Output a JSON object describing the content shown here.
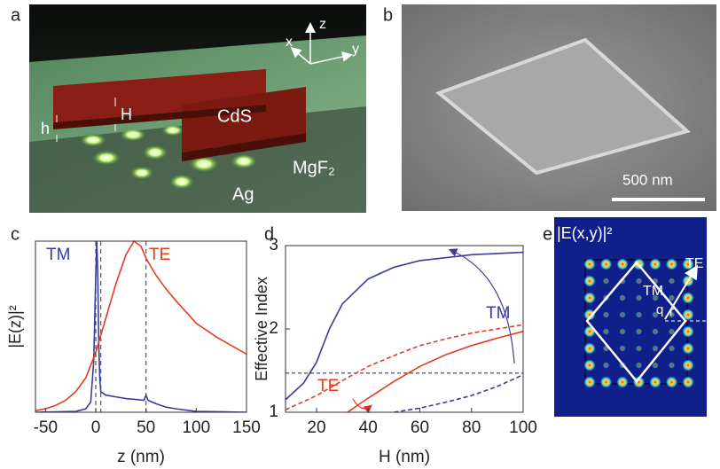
{
  "figure": {
    "panel_labels": [
      "a",
      "b",
      "c",
      "d",
      "e"
    ],
    "panel_a": {
      "axes": [
        "x",
        "y",
        "z"
      ],
      "labels": [
        "H",
        "h",
        "CdS",
        "MgF₂",
        "Ag"
      ]
    },
    "panel_b": {
      "scale_bar": "500 nm"
    },
    "panel_e": {
      "title": "|E(x,y)|²",
      "labels": [
        "TE",
        "TM",
        "q",
        "r"
      ]
    }
  },
  "chart_data": [
    {
      "type": "line",
      "x_label": "z (nm)",
      "y_label": "|E(z)|²",
      "xlim": [
        -60,
        150
      ],
      "xticks": [
        -50,
        0,
        50,
        100,
        150
      ],
      "ylim": [
        0,
        1
      ],
      "vlines": [
        0,
        5,
        50
      ],
      "series": [
        {
          "name": "TM",
          "color": "#3a3aa0",
          "x": [
            -60,
            -20,
            -10,
            -5,
            -2,
            0,
            1,
            2,
            3,
            4,
            5,
            10,
            20,
            30,
            40,
            48,
            50,
            52,
            60,
            70,
            80,
            100,
            150
          ],
          "values": [
            0,
            0.005,
            0.02,
            0.06,
            0.3,
            0.8,
            1.0,
            0.8,
            0.4,
            0.2,
            0.12,
            0.1,
            0.09,
            0.08,
            0.075,
            0.07,
            0.1,
            0.07,
            0.05,
            0.03,
            0.02,
            0.005,
            0
          ]
        },
        {
          "name": "TE",
          "color": "#e83a20",
          "x": [
            -60,
            -50,
            -40,
            -30,
            -20,
            -10,
            0,
            5,
            10,
            20,
            30,
            38,
            45,
            50,
            60,
            70,
            80,
            100,
            120,
            150
          ],
          "values": [
            0.01,
            0.02,
            0.04,
            0.07,
            0.12,
            0.2,
            0.35,
            0.45,
            0.55,
            0.75,
            0.92,
            1.0,
            0.97,
            0.9,
            0.8,
            0.72,
            0.65,
            0.52,
            0.44,
            0.34
          ]
        }
      ]
    },
    {
      "type": "line",
      "x_label": "H (nm)",
      "y_label": "Effective Index",
      "xlim": [
        8,
        100
      ],
      "xticks": [
        20,
        40,
        60,
        80,
        100
      ],
      "ylim": [
        1,
        3
      ],
      "yticks": [
        1,
        2,
        3
      ],
      "hlines": [
        1.47
      ],
      "annotations": [
        "TM",
        "TE"
      ],
      "series": [
        {
          "color": "#3a3aa0",
          "dash": false,
          "x": [
            8,
            15,
            20,
            25,
            30,
            40,
            50,
            60,
            80,
            100
          ],
          "values": [
            1.15,
            1.35,
            1.6,
            2.0,
            2.3,
            2.6,
            2.74,
            2.82,
            2.89,
            2.92
          ]
        },
        {
          "color": "#3a3aa0",
          "dash": true,
          "x": [
            50,
            60,
            70,
            80,
            90,
            100
          ],
          "values": [
            1.0,
            1.05,
            1.12,
            1.2,
            1.31,
            1.45
          ]
        },
        {
          "color": "#e83a20",
          "dash": false,
          "x": [
            32,
            40,
            50,
            60,
            70,
            80,
            90,
            100
          ],
          "values": [
            1.0,
            1.17,
            1.37,
            1.55,
            1.69,
            1.8,
            1.89,
            1.97
          ]
        },
        {
          "color": "#e83a20",
          "dash": true,
          "x": [
            8,
            20,
            30,
            40,
            50,
            60,
            70,
            80,
            90,
            100
          ],
          "values": [
            1.03,
            1.2,
            1.38,
            1.55,
            1.68,
            1.8,
            1.88,
            1.95,
            2.0,
            2.05
          ]
        }
      ]
    }
  ]
}
